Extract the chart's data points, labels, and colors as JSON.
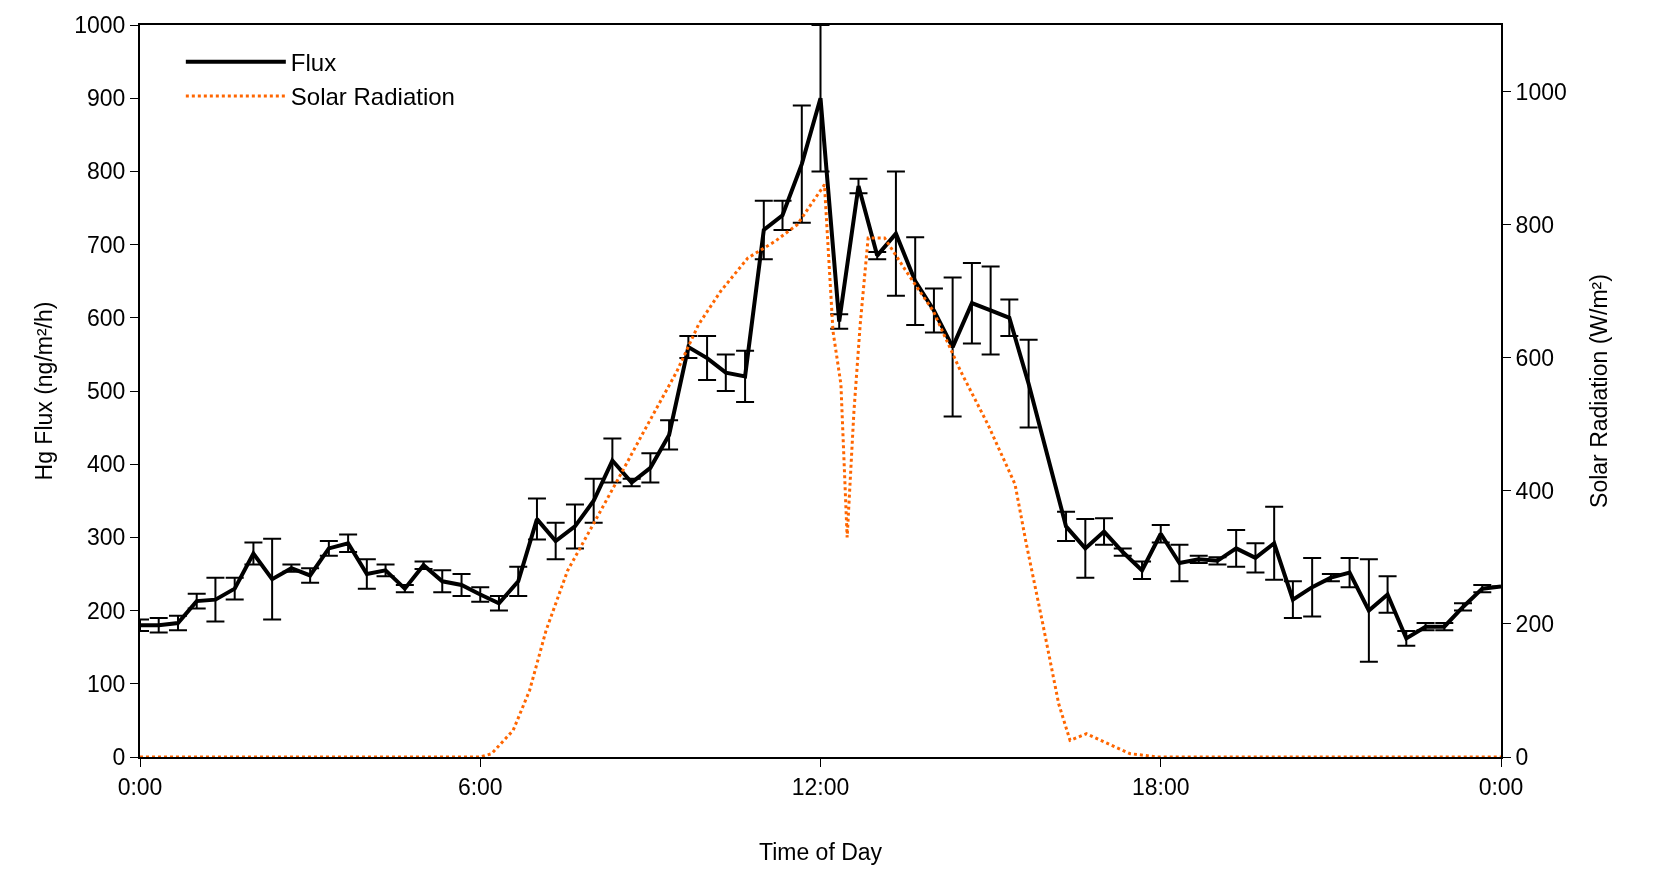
{
  "chart_data": {
    "type": "line",
    "xlabel": "Time of Day",
    "ylabel": "Hg Flux (ng/m²/h)",
    "y2label": "Solar Radiation (W/m²)",
    "xlim": [
      0,
      24
    ],
    "xticks": [
      {
        "value": 0,
        "label": "0:00"
      },
      {
        "value": 6,
        "label": "6:00"
      },
      {
        "value": 12,
        "label": "12:00"
      },
      {
        "value": 18,
        "label": "18:00"
      },
      {
        "value": 24,
        "label": "0:00"
      }
    ],
    "ylim": [
      0,
      1000
    ],
    "yticks": [
      0,
      100,
      200,
      300,
      400,
      500,
      600,
      700,
      800,
      900,
      1000
    ],
    "y2lim": [
      0,
      1100
    ],
    "y2ticks": [
      0,
      200,
      400,
      600,
      800,
      1000
    ],
    "grid": false,
    "legend": "top left",
    "marker": "none",
    "series": [
      {
        "name": "Flux",
        "color": "#000000",
        "line_style": "solid",
        "x": [
          0,
          0.33,
          0.67,
          1,
          1.33,
          1.67,
          2,
          2.33,
          2.67,
          3,
          3.33,
          3.67,
          4,
          4.33,
          4.67,
          5,
          5.33,
          5.67,
          6,
          6.33,
          6.67,
          7,
          7.33,
          7.67,
          8,
          8.33,
          8.67,
          9,
          9.33,
          9.67,
          10,
          10.33,
          10.67,
          11,
          11.33,
          11.67,
          12,
          12.33,
          12.67,
          13,
          13.33,
          13.67,
          14,
          14.33,
          14.67,
          15,
          15.33,
          15.67,
          16.33,
          16.67,
          17,
          17.33,
          17.67,
          18,
          18.33,
          18.67,
          19,
          19.33,
          19.67,
          20,
          20.33,
          20.67,
          21,
          21.33,
          21.67,
          22,
          22.33,
          22.67,
          23,
          23.33,
          23.67,
          24
        ],
        "values": [
          180,
          180,
          183,
          213,
          215,
          230,
          278,
          243,
          258,
          248,
          285,
          292,
          250,
          255,
          230,
          262,
          240,
          235,
          222,
          210,
          240,
          325,
          295,
          315,
          350,
          405,
          375,
          395,
          440,
          560,
          545,
          525,
          520,
          720,
          740,
          810,
          900,
          595,
          780,
          685,
          715,
          650,
          610,
          560,
          620,
          610,
          600,
          510,
          315,
          285,
          308,
          280,
          255,
          305,
          265,
          270,
          268,
          285,
          272,
          292,
          215,
          232,
          245,
          252,
          200,
          222,
          162,
          178,
          178,
          205,
          230,
          233
        ],
        "errors": [
          8,
          10,
          10,
          10,
          30,
          15,
          15,
          55,
          5,
          10,
          10,
          12,
          20,
          8,
          5,
          5,
          15,
          15,
          10,
          10,
          20,
          28,
          25,
          30,
          30,
          30,
          5,
          20,
          20,
          15,
          30,
          25,
          35,
          40,
          20,
          80,
          100,
          10,
          10,
          5,
          85,
          60,
          30,
          95,
          55,
          60,
          25,
          60,
          20,
          40,
          18,
          5,
          12,
          12,
          25,
          5,
          5,
          25,
          20,
          50,
          25,
          40,
          5,
          20,
          70,
          25,
          10,
          5,
          5,
          5,
          5,
          null
        ]
      },
      {
        "name": "Solar Radiation",
        "color": "#ff6600",
        "line_style": "dotted",
        "axis": "y2",
        "x": [
          0,
          6,
          6.2,
          6.58,
          6.87,
          7.16,
          7.54,
          7.93,
          8.51,
          8.89,
          9.47,
          9.85,
          10.24,
          10.72,
          11.2,
          11.59,
          12.07,
          12.22,
          12.36,
          12.47,
          12.59,
          12.7,
          12.84,
          13.13,
          13.51,
          13.99,
          14.47,
          14.95,
          15.43,
          15.63,
          15.92,
          16.2,
          16.4,
          16.69,
          17.07,
          17.46,
          17.94,
          24
        ],
        "values": [
          0,
          0,
          5,
          40,
          100,
          190,
          280,
          340,
          430,
          490,
          580,
          650,
          700,
          750,
          775,
          800,
          860,
          640,
          560,
          330,
          520,
          650,
          780,
          780,
          730,
          670,
          580,
          500,
          410,
          320,
          200,
          80,
          25,
          35,
          20,
          5,
          0,
          0
        ]
      }
    ]
  }
}
